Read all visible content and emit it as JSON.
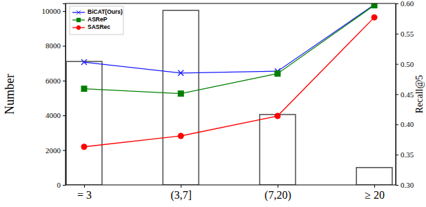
{
  "chart_data": {
    "type": "bar",
    "categories": [
      "= 3",
      "(3,7]",
      "(7,20)",
      "≥ 20"
    ],
    "y_label": "Number",
    "y2_label": "Recall@5",
    "ylim": [
      0,
      10440
    ],
    "yticks": [
      0,
      2000,
      4000,
      6000,
      8000,
      10000
    ],
    "y2lim": [
      0.3,
      0.6
    ],
    "y2ticks": [
      {
        "value": 0.3,
        "label": "0.30"
      },
      0.35,
      {
        "value": 0.4,
        "label": "0.40"
      },
      0.45,
      {
        "value": 0.5,
        "label": "0.50"
      },
      0.55,
      {
        "value": 0.6,
        "label": "0.60"
      }
    ],
    "legend": "upper left",
    "series": [
      {
        "type": "bar",
        "color": "#ffffff",
        "values": [
          7100,
          10040,
          4050,
          1000
        ]
      },
      {
        "name": "BiCAT(Ours)",
        "type": "line",
        "color": "#1a1aff",
        "marker": "x",
        "axis": "y2",
        "values": [
          0.503,
          0.485,
          0.488,
          0.598
        ]
      },
      {
        "name": "ASReP",
        "type": "line",
        "color": "#008000",
        "marker": "square",
        "axis": "y2",
        "values": [
          0.459,
          0.451,
          0.484,
          0.597
        ]
      },
      {
        "name": "SASRec",
        "type": "line",
        "color": "#ff0000",
        "marker": "circle",
        "axis": "y2",
        "values": [
          0.363,
          0.381,
          0.414,
          0.577
        ]
      }
    ]
  }
}
